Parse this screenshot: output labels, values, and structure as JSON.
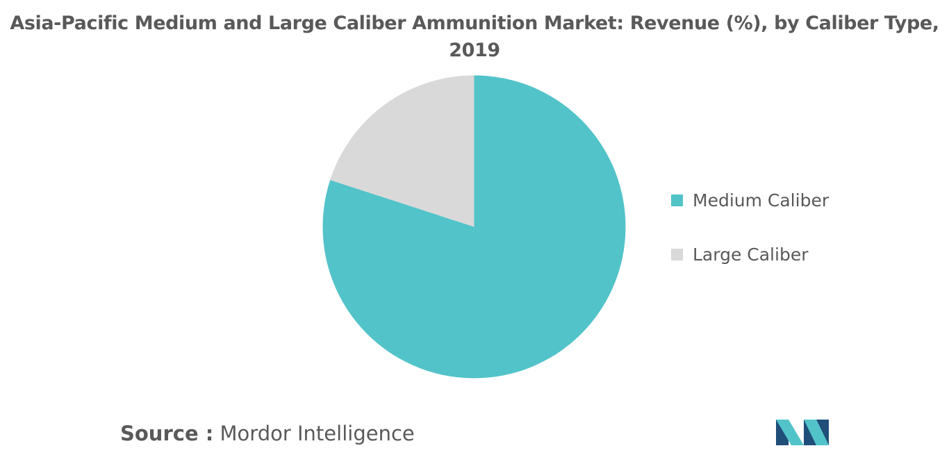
{
  "chart_data": {
    "type": "pie",
    "title_line1": "Asia-Pacific Medium and Large Caliber Ammunition Market: Revenue (%), by Caliber Type,",
    "title_line2": "2019",
    "slices": [
      {
        "label": "Medium Caliber",
        "value": 80,
        "color": "#52c3c9"
      },
      {
        "label": "Large Caliber",
        "value": 20,
        "color": "#d9d9d9"
      }
    ],
    "legend_position": "right"
  },
  "source": {
    "key": "Source :",
    "value": "Mordor Intelligence"
  },
  "logo": {
    "icon": "mordor-intelligence-logo-icon",
    "colors": [
      "#1f4e79",
      "#52c3c9"
    ]
  }
}
